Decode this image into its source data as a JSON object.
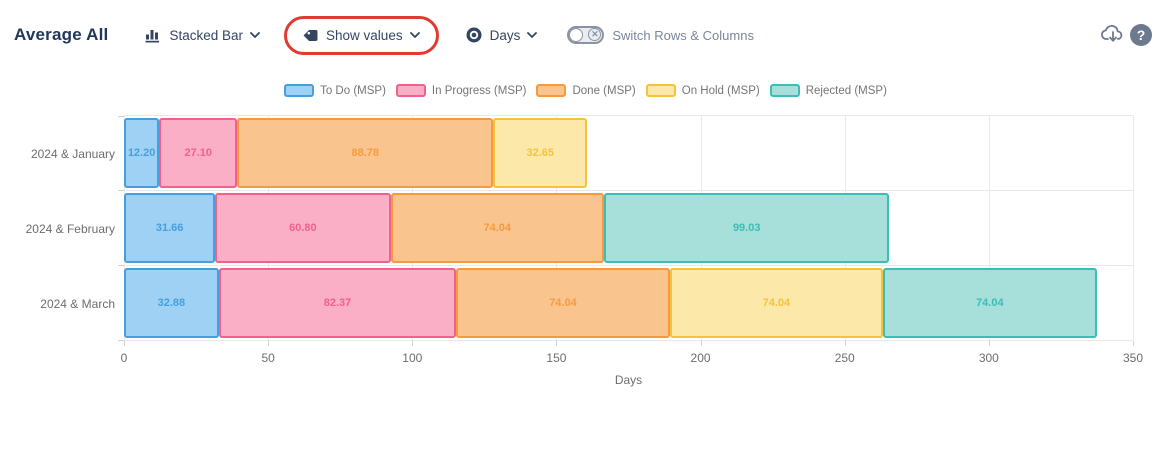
{
  "toolbar": {
    "title": "Average All",
    "chart_type_label": "Stacked Bar",
    "show_values_label": "Show values",
    "unit_label": "Days",
    "switch_rows_label": "Switch Rows & Columns",
    "toggle_state": "off",
    "icons": {
      "chart_type": "bar-chart-icon",
      "show_values": "tag-icon",
      "unit": "target-icon",
      "export": "cloud-download-icon",
      "help": "help-icon"
    }
  },
  "annotation": {
    "shape": "red-rounded-ring",
    "color": "#e13b30",
    "around": "Show values dropdown"
  },
  "chart_data": {
    "type": "bar",
    "orientation": "horizontal",
    "stacked": true,
    "show_values": true,
    "categories": [
      "2024 & January",
      "2024 & February",
      "2024 & March"
    ],
    "series": [
      {
        "name": "To Do (MSP)",
        "values": [
          12.2,
          31.66,
          32.88
        ],
        "fill": "#9fd1f4",
        "stroke": "#459fde"
      },
      {
        "name": "In Progress (MSP)",
        "values": [
          27.1,
          60.8,
          82.37
        ],
        "fill": "#faafc7",
        "stroke": "#f2608c"
      },
      {
        "name": "Done (MSP)",
        "values": [
          88.78,
          74.04,
          74.04
        ],
        "fill": "#fac48e",
        "stroke": "#f59b3d"
      },
      {
        "name": "On Hold (MSP)",
        "values": [
          32.65,
          0,
          74.04
        ],
        "fill": "#fce8a9",
        "stroke": "#f3c33e"
      },
      {
        "name": "Rejected (MSP)",
        "values": [
          0,
          99.03,
          74.04
        ],
        "fill": "#a7dfdb",
        "stroke": "#3cbdb5"
      }
    ],
    "xlabel": "Days",
    "xlim": [
      0,
      350
    ],
    "xticks": [
      0,
      50,
      100,
      150,
      200,
      250,
      300,
      350
    ],
    "value_decimals": 2,
    "legend_position": "top",
    "grid": true
  }
}
